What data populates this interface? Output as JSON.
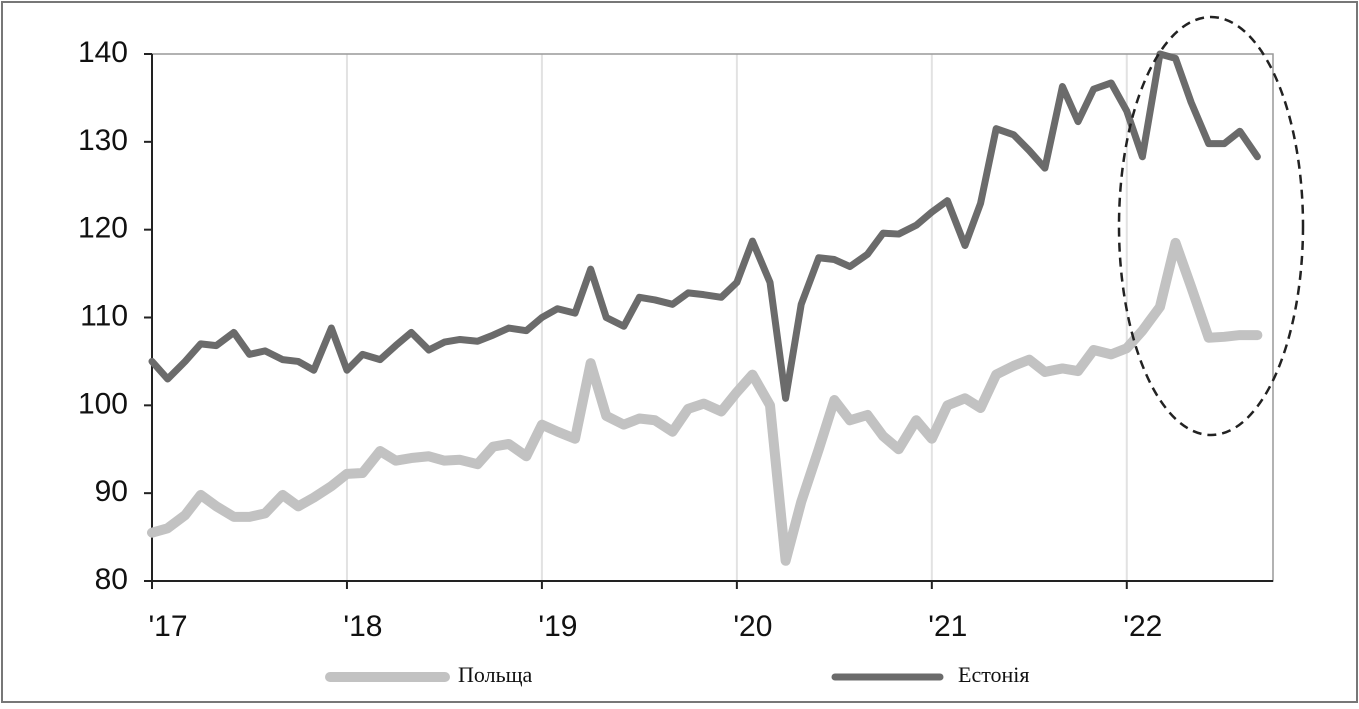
{
  "chart_data": {
    "type": "line",
    "x": [
      2017.0,
      2017.08,
      2017.17,
      2017.25,
      2017.33,
      2017.42,
      2017.5,
      2017.58,
      2017.67,
      2017.75,
      2017.83,
      2017.92,
      2018.0,
      2018.08,
      2018.17,
      2018.25,
      2018.33,
      2018.42,
      2018.5,
      2018.58,
      2018.67,
      2018.75,
      2018.83,
      2018.92,
      2019.0,
      2019.08,
      2019.17,
      2019.25,
      2019.33,
      2019.42,
      2019.5,
      2019.58,
      2019.67,
      2019.75,
      2019.83,
      2019.92,
      2020.0,
      2020.08,
      2020.17,
      2020.25,
      2020.33,
      2020.42,
      2020.5,
      2020.58,
      2020.67,
      2020.75,
      2020.83,
      2020.92,
      2021.0,
      2021.08,
      2021.17,
      2021.25,
      2021.33,
      2021.42,
      2021.5,
      2021.58,
      2021.67,
      2021.75,
      2021.83,
      2021.92,
      2022.0,
      2022.08,
      2022.17,
      2022.25,
      2022.33,
      2022.42,
      2022.5,
      2022.58,
      2022.67
    ],
    "series": [
      {
        "name": "Польща",
        "color": "#c2c2c2",
        "values": [
          85.5,
          86,
          87.5,
          89.8,
          88.5,
          87.3,
          87.3,
          87.7,
          89.8,
          88.5,
          89.5,
          90.8,
          92.2,
          92.3,
          94.8,
          93.7,
          94,
          94.2,
          93.7,
          93.8,
          93.3,
          95.3,
          95.6,
          94.2,
          97.8,
          97,
          96.2,
          104.8,
          98.8,
          97.8,
          98.5,
          98.3,
          97,
          99.6,
          100.2,
          99.3,
          101.5,
          103.5,
          100,
          82.3,
          89,
          95,
          100.6,
          98.3,
          98.9,
          96.5,
          95,
          98.3,
          96.2,
          100,
          100.8,
          99.7,
          103.5,
          104.5,
          105.2,
          103.8,
          104.2,
          103.9,
          106.3,
          105.8,
          106.5,
          108.5,
          111.2,
          118.5,
          113.5,
          107.7,
          107.8,
          108,
          108
        ]
      },
      {
        "name": "Естонія",
        "color": "#6b6b6b",
        "values": [
          105,
          103,
          105,
          107,
          106.8,
          108.3,
          105.8,
          106.2,
          105.2,
          105,
          104,
          108.8,
          104,
          105.8,
          105.2,
          106.8,
          108.3,
          106.3,
          107.2,
          107.5,
          107.3,
          108,
          108.8,
          108.5,
          110,
          111,
          110.5,
          115.5,
          110,
          109,
          112.3,
          112,
          111.5,
          112.8,
          112.6,
          112.3,
          114,
          118.7,
          114,
          100.8,
          111.5,
          116.8,
          116.6,
          115.8,
          117.2,
          119.6,
          119.5,
          120.5,
          122,
          123.3,
          118.2,
          123,
          131.5,
          130.8,
          129,
          127,
          136.3,
          132.3,
          136,
          136.7,
          133.5,
          128.3,
          140,
          139.5,
          134.5,
          129.8,
          129.8,
          131.2,
          128.3
        ]
      }
    ],
    "xlim": [
      2017,
      2022.75
    ],
    "xticks": [
      {
        "value": 2017,
        "label": "'17"
      },
      {
        "value": 2018,
        "label": "'18"
      },
      {
        "value": 2019,
        "label": "'19"
      },
      {
        "value": 2020,
        "label": "'20"
      },
      {
        "value": 2021,
        "label": "'21"
      },
      {
        "value": 2022,
        "label": "'22"
      }
    ],
    "ylim": [
      80,
      140
    ],
    "yticks": [
      80,
      90,
      100,
      110,
      120,
      130,
      140
    ],
    "grid": "x",
    "legend": "bottom"
  }
}
